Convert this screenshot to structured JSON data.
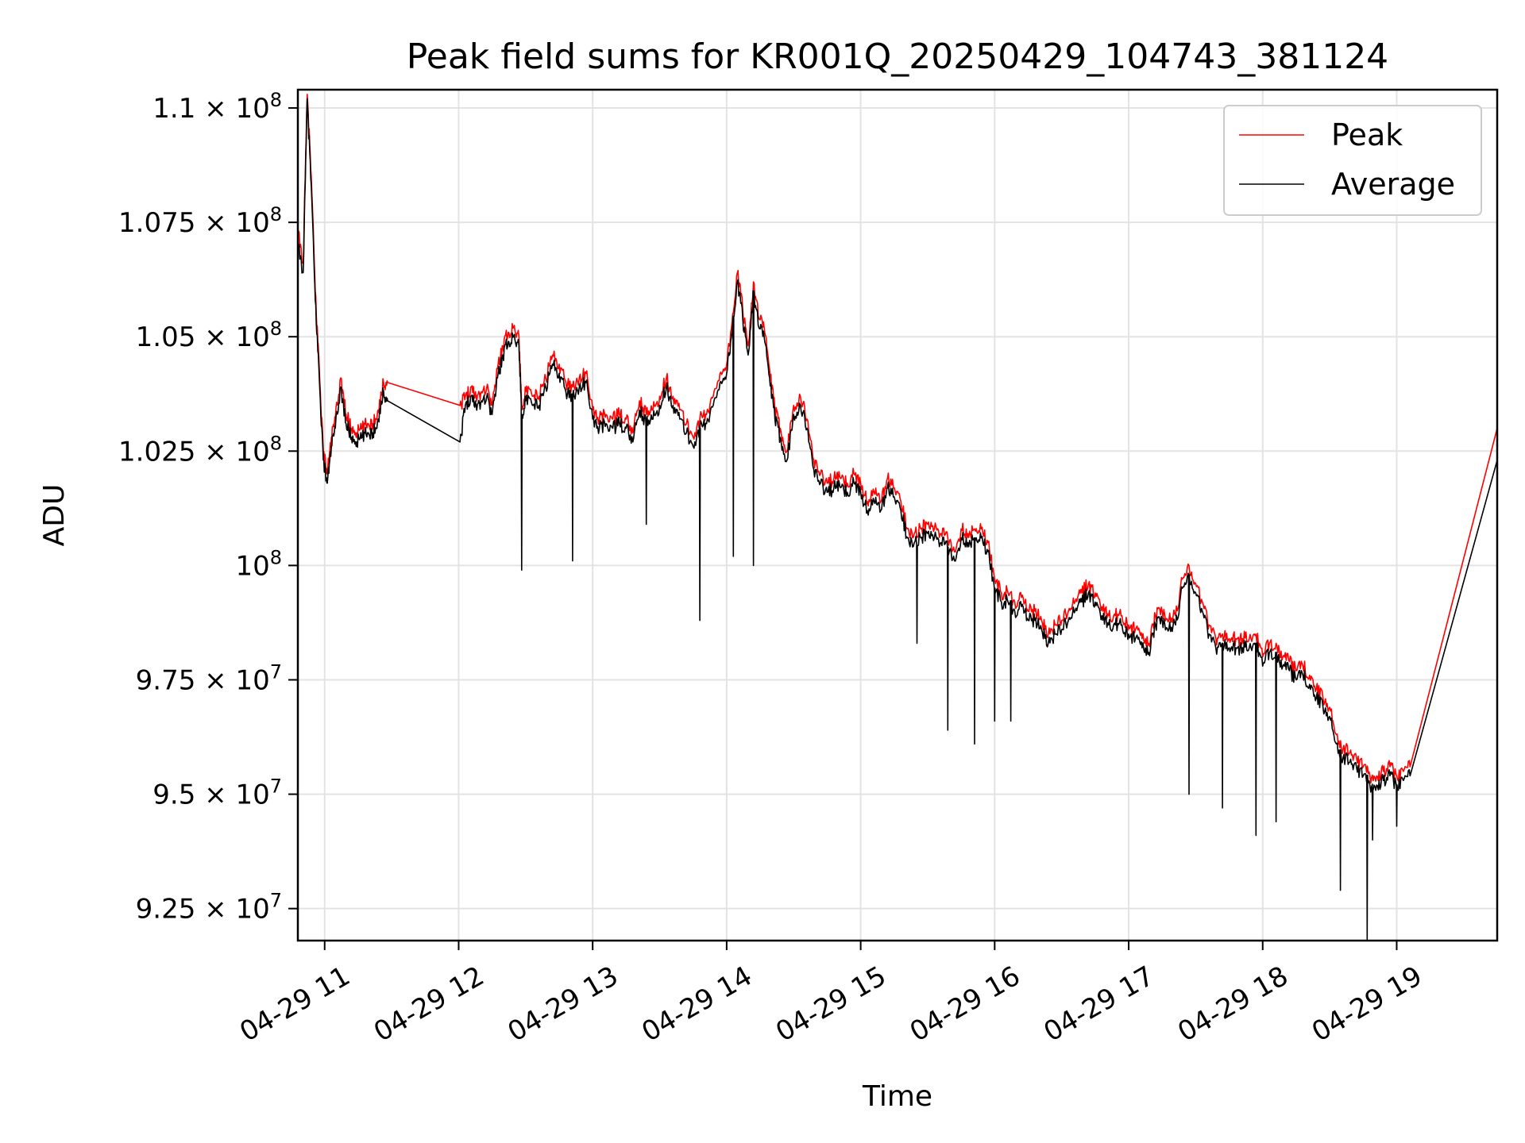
{
  "chart_data": {
    "type": "line",
    "title": "Peak field sums for KR001Q_20250429_104743_381124",
    "xlabel": "Time",
    "ylabel": "ADU",
    "x_unit": "hour of 2025-04-29",
    "xlim": [
      10.8,
      19.75
    ],
    "ylim": [
      91800000,
      110400000
    ],
    "grid": true,
    "legend_position": "top-right",
    "x_ticks": [
      {
        "value": 11,
        "label": "04-29 11"
      },
      {
        "value": 12,
        "label": "04-29 12"
      },
      {
        "value": 13,
        "label": "04-29 13"
      },
      {
        "value": 14,
        "label": "04-29 14"
      },
      {
        "value": 15,
        "label": "04-29 15"
      },
      {
        "value": 16,
        "label": "04-29 16"
      },
      {
        "value": 17,
        "label": "04-29 17"
      },
      {
        "value": 18,
        "label": "04-29 18"
      },
      {
        "value": 19,
        "label": "04-29 19"
      }
    ],
    "y_ticks": [
      {
        "value": 92500000,
        "mantissa": "9.25",
        "exp": "7"
      },
      {
        "value": 95000000,
        "mantissa": "9.5",
        "exp": "7"
      },
      {
        "value": 97500000,
        "mantissa": "9.75",
        "exp": "7"
      },
      {
        "value": 100000000,
        "mantissa": "",
        "exp": "8"
      },
      {
        "value": 102500000,
        "mantissa": "1.025",
        "exp": "8"
      },
      {
        "value": 105000000,
        "mantissa": "1.05",
        "exp": "8"
      },
      {
        "value": 107500000,
        "mantissa": "1.075",
        "exp": "8"
      },
      {
        "value": 110000000,
        "mantissa": "1.1",
        "exp": "8"
      }
    ],
    "series": [
      {
        "name": "Peak",
        "color": "#ff0000",
        "x": [
          10.8,
          10.84,
          10.87,
          10.9,
          10.93,
          10.96,
          10.99,
          11.02,
          11.05,
          11.08,
          11.12,
          11.16,
          11.2,
          11.24,
          11.28,
          11.32,
          11.36,
          11.4,
          11.44,
          11.47,
          12.01,
          12.05,
          12.09,
          12.13,
          12.17,
          12.21,
          12.25,
          12.29,
          12.33,
          12.37,
          12.41,
          12.45,
          12.47,
          12.5,
          12.55,
          12.6,
          12.65,
          12.7,
          12.75,
          12.8,
          12.85,
          12.9,
          12.95,
          13.0,
          13.05,
          13.1,
          13.15,
          13.2,
          13.25,
          13.3,
          13.35,
          13.4,
          13.45,
          13.5,
          13.55,
          13.6,
          13.65,
          13.7,
          13.75,
          13.8,
          13.85,
          13.9,
          13.95,
          14.0,
          14.04,
          14.08,
          14.12,
          14.16,
          14.2,
          14.24,
          14.28,
          14.32,
          14.36,
          14.4,
          14.45,
          14.5,
          14.55,
          14.6,
          14.65,
          14.7,
          14.75,
          14.8,
          14.85,
          14.9,
          14.95,
          15.0,
          15.05,
          15.1,
          15.15,
          15.2,
          15.25,
          15.3,
          15.35,
          15.4,
          15.45,
          15.5,
          15.55,
          15.6,
          15.65,
          15.7,
          15.75,
          15.8,
          15.85,
          15.9,
          15.95,
          16.0,
          16.05,
          16.1,
          16.15,
          16.2,
          16.25,
          16.3,
          16.35,
          16.4,
          16.45,
          16.5,
          16.55,
          16.6,
          16.65,
          16.7,
          16.75,
          16.8,
          16.85,
          16.9,
          16.95,
          17.0,
          17.05,
          17.1,
          17.15,
          17.2,
          17.25,
          17.3,
          17.35,
          17.4,
          17.45,
          17.5,
          17.55,
          17.6,
          17.65,
          17.7,
          17.75,
          17.8,
          17.85,
          17.9,
          17.95,
          18.0,
          18.05,
          18.1,
          18.15,
          18.2,
          18.25,
          18.3,
          18.35,
          18.4,
          18.45,
          18.5,
          18.55,
          18.6,
          18.65,
          18.7,
          18.75,
          18.8,
          18.85,
          18.9,
          18.95,
          19.0,
          19.05,
          19.1,
          19.75
        ],
        "values": [
          107300000,
          106600000,
          110300000,
          108500000,
          106000000,
          104300000,
          102500000,
          102000000,
          102800000,
          103200000,
          104100000,
          103300000,
          103000000,
          102900000,
          103000000,
          103100000,
          103100000,
          103400000,
          104000000,
          104000000,
          103500000,
          103700000,
          103900000,
          103700000,
          103800000,
          103900000,
          103500000,
          104300000,
          104800000,
          105100000,
          105200000,
          105000000,
          103500000,
          103800000,
          103700000,
          103700000,
          104100000,
          104600000,
          104400000,
          104000000,
          103900000,
          104100000,
          104200000,
          103400000,
          103200000,
          103300000,
          103200000,
          103300000,
          103200000,
          102900000,
          103600000,
          103300000,
          103400000,
          103700000,
          104100000,
          103700000,
          103400000,
          103100000,
          102800000,
          103200000,
          103300000,
          103700000,
          104200000,
          104400000,
          105300000,
          106400000,
          105600000,
          104800000,
          106200000,
          105400000,
          105200000,
          104300000,
          103400000,
          103000000,
          102500000,
          103500000,
          103700000,
          103200000,
          102300000,
          102000000,
          101800000,
          101900000,
          101900000,
          101800000,
          102000000,
          101800000,
          101400000,
          101600000,
          101400000,
          101900000,
          101700000,
          101400000,
          100800000,
          100700000,
          100800000,
          100900000,
          100800000,
          100700000,
          100600000,
          100300000,
          100800000,
          100700000,
          100800000,
          100800000,
          100500000,
          99700000,
          99400000,
          99400000,
          99200000,
          99300000,
          99000000,
          99000000,
          98800000,
          98500000,
          98700000,
          98800000,
          99000000,
          99200000,
          99400000,
          99600000,
          99400000,
          99100000,
          98900000,
          98900000,
          98900000,
          98700000,
          98600000,
          98400000,
          98300000,
          98900000,
          99000000,
          98800000,
          98900000,
          99700000,
          100000000,
          99600000,
          99200000,
          98700000,
          98400000,
          98500000,
          98400000,
          98400000,
          98400000,
          98400000,
          98500000,
          98000000,
          98300000,
          98300000,
          98000000,
          97900000,
          97700000,
          97800000,
          97600000,
          97300000,
          97100000,
          96900000,
          96300000,
          96000000,
          95900000,
          95800000,
          95600000,
          95400000,
          95400000,
          95500000,
          95600000,
          95400000,
          95500000,
          95600000,
          103000000
        ]
      },
      {
        "name": "Average",
        "color": "#000000",
        "x": [
          10.8,
          10.84,
          10.87,
          10.9,
          10.93,
          10.96,
          10.99,
          11.02,
          11.05,
          11.08,
          11.12,
          11.16,
          11.2,
          11.24,
          11.28,
          11.32,
          11.36,
          11.4,
          11.44,
          11.47,
          12.01,
          12.05,
          12.09,
          12.13,
          12.17,
          12.21,
          12.25,
          12.29,
          12.33,
          12.37,
          12.41,
          12.45,
          12.47,
          12.5,
          12.55,
          12.6,
          12.65,
          12.7,
          12.75,
          12.8,
          12.85,
          12.9,
          12.95,
          13.0,
          13.05,
          13.1,
          13.15,
          13.2,
          13.25,
          13.3,
          13.35,
          13.4,
          13.45,
          13.5,
          13.55,
          13.6,
          13.65,
          13.7,
          13.75,
          13.8,
          13.85,
          13.9,
          13.95,
          14.0,
          14.04,
          14.08,
          14.12,
          14.16,
          14.2,
          14.24,
          14.28,
          14.32,
          14.36,
          14.4,
          14.45,
          14.5,
          14.55,
          14.6,
          14.65,
          14.7,
          14.75,
          14.8,
          14.85,
          14.9,
          14.95,
          15.0,
          15.05,
          15.1,
          15.15,
          15.2,
          15.25,
          15.3,
          15.35,
          15.4,
          15.45,
          15.5,
          15.55,
          15.6,
          15.65,
          15.7,
          15.75,
          15.8,
          15.85,
          15.9,
          15.95,
          16.0,
          16.05,
          16.1,
          16.15,
          16.2,
          16.25,
          16.3,
          16.35,
          16.4,
          16.45,
          16.5,
          16.55,
          16.6,
          16.65,
          16.7,
          16.75,
          16.8,
          16.85,
          16.9,
          16.95,
          17.0,
          17.05,
          17.1,
          17.15,
          17.2,
          17.25,
          17.3,
          17.35,
          17.4,
          17.45,
          17.5,
          17.55,
          17.6,
          17.65,
          17.7,
          17.75,
          17.8,
          17.85,
          17.9,
          17.95,
          18.0,
          18.05,
          18.1,
          18.15,
          18.2,
          18.25,
          18.3,
          18.35,
          18.4,
          18.45,
          18.5,
          18.55,
          18.6,
          18.65,
          18.7,
          18.75,
          18.8,
          18.85,
          18.9,
          18.95,
          19.0,
          19.05,
          19.1,
          19.75
        ],
        "values": [
          107000000,
          106400000,
          110200000,
          108300000,
          105800000,
          104100000,
          102300000,
          101800000,
          102600000,
          103000000,
          103900000,
          103100000,
          102800000,
          102700000,
          102800000,
          102900000,
          102900000,
          103200000,
          103800000,
          103600000,
          102700000,
          103500000,
          103700000,
          103500000,
          103600000,
          103700000,
          103300000,
          104100000,
          104600000,
          104900000,
          105000000,
          104800000,
          103300000,
          103600000,
          103500000,
          103500000,
          103900000,
          104400000,
          104200000,
          103800000,
          103700000,
          103900000,
          104000000,
          103200000,
          103000000,
          103100000,
          103000000,
          103100000,
          103000000,
          102700000,
          103400000,
          103100000,
          103200000,
          103500000,
          103900000,
          103500000,
          103200000,
          102900000,
          102600000,
          103000000,
          103100000,
          103500000,
          104000000,
          104200000,
          105100000,
          106200000,
          105400000,
          104600000,
          106000000,
          105200000,
          105000000,
          104100000,
          103200000,
          102800000,
          102300000,
          103300000,
          103500000,
          103000000,
          102100000,
          101800000,
          101600000,
          101700000,
          101700000,
          101600000,
          101800000,
          101600000,
          101200000,
          101400000,
          101200000,
          101700000,
          101500000,
          101200000,
          100600000,
          100500000,
          100600000,
          100700000,
          100600000,
          100500000,
          100400000,
          100100000,
          100600000,
          100500000,
          100600000,
          100600000,
          100300000,
          99500000,
          99200000,
          99200000,
          99000000,
          99100000,
          98800000,
          98800000,
          98600000,
          98300000,
          98500000,
          98600000,
          98800000,
          99000000,
          99200000,
          99400000,
          99200000,
          98900000,
          98700000,
          98700000,
          98700000,
          98500000,
          98400000,
          98200000,
          98100000,
          98700000,
          98800000,
          98600000,
          98700000,
          99500000,
          99800000,
          99400000,
          99000000,
          98500000,
          98200000,
          98300000,
          98200000,
          98200000,
          98200000,
          98200000,
          98300000,
          97800000,
          98100000,
          98100000,
          97800000,
          97700000,
          97500000,
          97600000,
          97400000,
          97100000,
          96900000,
          96700000,
          96100000,
          95800000,
          95700000,
          95600000,
          95400000,
          95200000,
          95200000,
          95300000,
          95400000,
          95200000,
          95300000,
          95400000,
          102300000
        ],
        "dips": [
          [
            12.47,
            99900000
          ],
          [
            12.85,
            100100000
          ],
          [
            13.4,
            100900000
          ],
          [
            13.8,
            98800000
          ],
          [
            14.05,
            100200000
          ],
          [
            14.2,
            100000000
          ],
          [
            15.42,
            98300000
          ],
          [
            15.65,
            96400000
          ],
          [
            15.85,
            96100000
          ],
          [
            16.0,
            96600000
          ],
          [
            16.12,
            96600000
          ],
          [
            17.45,
            95000000
          ],
          [
            17.7,
            94700000
          ],
          [
            17.95,
            94100000
          ],
          [
            18.1,
            94400000
          ],
          [
            18.58,
            92900000
          ],
          [
            18.78,
            91800000
          ],
          [
            18.82,
            94000000
          ],
          [
            19.0,
            94300000
          ]
        ]
      }
    ]
  }
}
